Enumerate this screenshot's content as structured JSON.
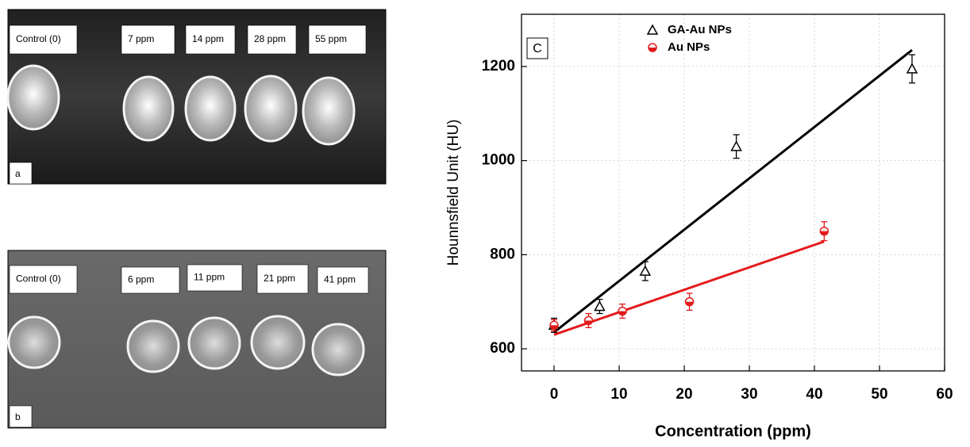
{
  "images": [
    {
      "label": "a",
      "tags": [
        "Control (0)",
        "7 ppm",
        "14 ppm",
        "28 ppm",
        "55 ppm"
      ]
    },
    {
      "label": "b",
      "tags": [
        "Control (0)",
        "6 ppm",
        "11 ppm",
        "21 ppm",
        "41 ppm"
      ]
    }
  ],
  "chart_data": {
    "type": "scatter",
    "annotation": "C",
    "x_label": "Concentration (ppm)",
    "y_label": "Hounnsfield Unit (HU)",
    "xlim": [
      -5,
      60
    ],
    "ylim": [
      553,
      1311
    ],
    "xticks": [
      0,
      10,
      20,
      30,
      40,
      50,
      60
    ],
    "yticks": [
      600,
      800,
      1000,
      1200
    ],
    "grid": true,
    "legend": "top",
    "series": [
      {
        "name": "GA-Au NPs",
        "color": "#000000",
        "marker": "triangle",
        "x": [
          0,
          7,
          14,
          28,
          55
        ],
        "y": [
          650,
          690,
          765,
          1030,
          1195
        ],
        "errors": [
          15,
          15,
          20,
          25,
          30
        ],
        "fit": {
          "x": [
            0,
            55
          ],
          "y": [
            635,
            1235
          ]
        }
      },
      {
        "name": "Au NPs",
        "color": "#e31a1c",
        "marker": "half-circle",
        "x": [
          0,
          5.3,
          10.5,
          20.8,
          41.5
        ],
        "y": [
          650,
          660,
          680,
          700,
          850
        ],
        "errors": [
          12,
          15,
          15,
          18,
          20
        ],
        "fit": {
          "x": [
            0,
            41.5
          ],
          "y": [
            630,
            828
          ]
        }
      }
    ]
  }
}
